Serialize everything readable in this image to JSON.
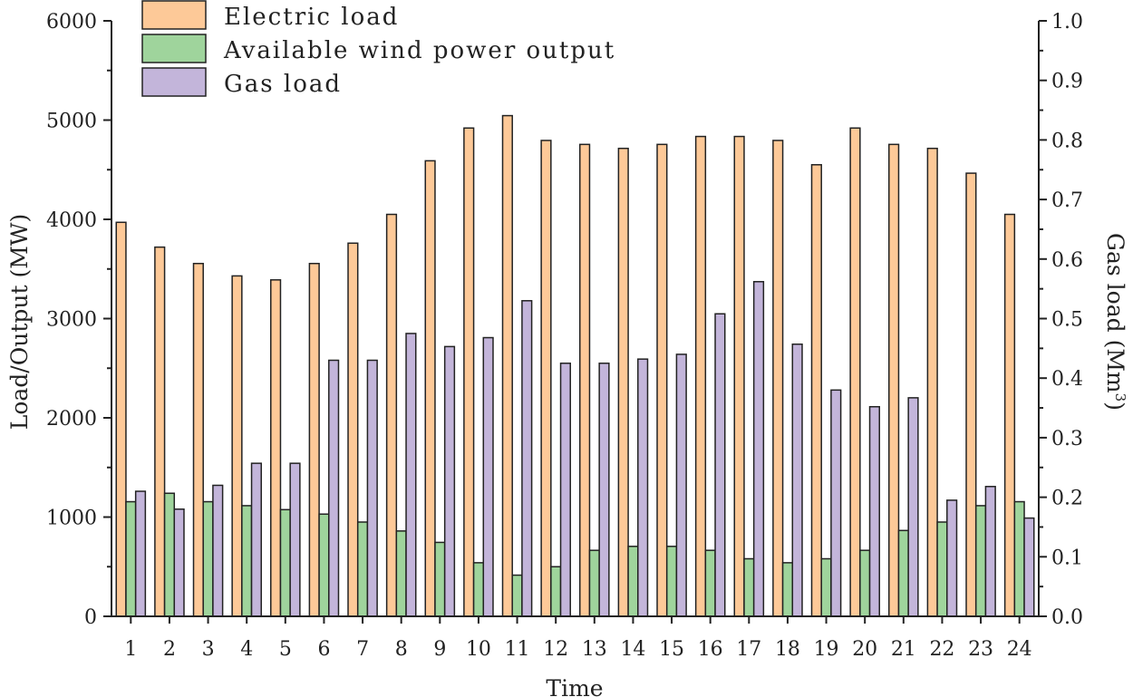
{
  "chart_data": {
    "type": "bar",
    "title": "",
    "xlabel": "Time",
    "ylabel": "Load/Output (MW)",
    "y2label_main": "Gas load (Mm",
    "y2label_sup": "3",
    "y2label_close": ")",
    "categories": [
      "1",
      "2",
      "3",
      "4",
      "5",
      "6",
      "7",
      "8",
      "9",
      "10",
      "11",
      "12",
      "13",
      "14",
      "15",
      "16",
      "17",
      "18",
      "19",
      "20",
      "21",
      "22",
      "23",
      "24"
    ],
    "ylim": [
      0,
      6000
    ],
    "y2lim": [
      0,
      1.0
    ],
    "yticks": [
      "0",
      "1000",
      "2000",
      "3000",
      "4000",
      "5000",
      "6000"
    ],
    "y2ticks": [
      "0.0",
      "0.1",
      "0.2",
      "0.3",
      "0.4",
      "0.5",
      "0.6",
      "0.7",
      "0.8",
      "0.9",
      "1.0"
    ],
    "legend_position": "top-left",
    "grid": false,
    "series": [
      {
        "name": "Electric load",
        "axis": "left",
        "color": "#FDC998",
        "values": [
          3970,
          3720,
          3555,
          3430,
          3390,
          3555,
          3760,
          4050,
          4590,
          4920,
          5045,
          4795,
          4755,
          4715,
          4755,
          4835,
          4835,
          4795,
          4550,
          4920,
          4755,
          4715,
          4465,
          4050
        ]
      },
      {
        "name": "Available wind power output",
        "axis": "left",
        "color": "#9FD49C",
        "values": [
          1155,
          1240,
          1155,
          1115,
          1075,
          1030,
          950,
          860,
          745,
          540,
          415,
          500,
          665,
          705,
          705,
          665,
          580,
          540,
          580,
          665,
          865,
          950,
          1115,
          1155
        ]
      },
      {
        "name": "Gas load",
        "axis": "right",
        "color": "#C3B5DA",
        "values": [
          0.21,
          0.18,
          0.22,
          0.257,
          0.257,
          0.43,
          0.43,
          0.475,
          0.453,
          0.468,
          0.53,
          0.425,
          0.425,
          0.432,
          0.44,
          0.508,
          0.562,
          0.457,
          0.38,
          0.352,
          0.367,
          0.195,
          0.218,
          0.165
        ]
      }
    ]
  }
}
